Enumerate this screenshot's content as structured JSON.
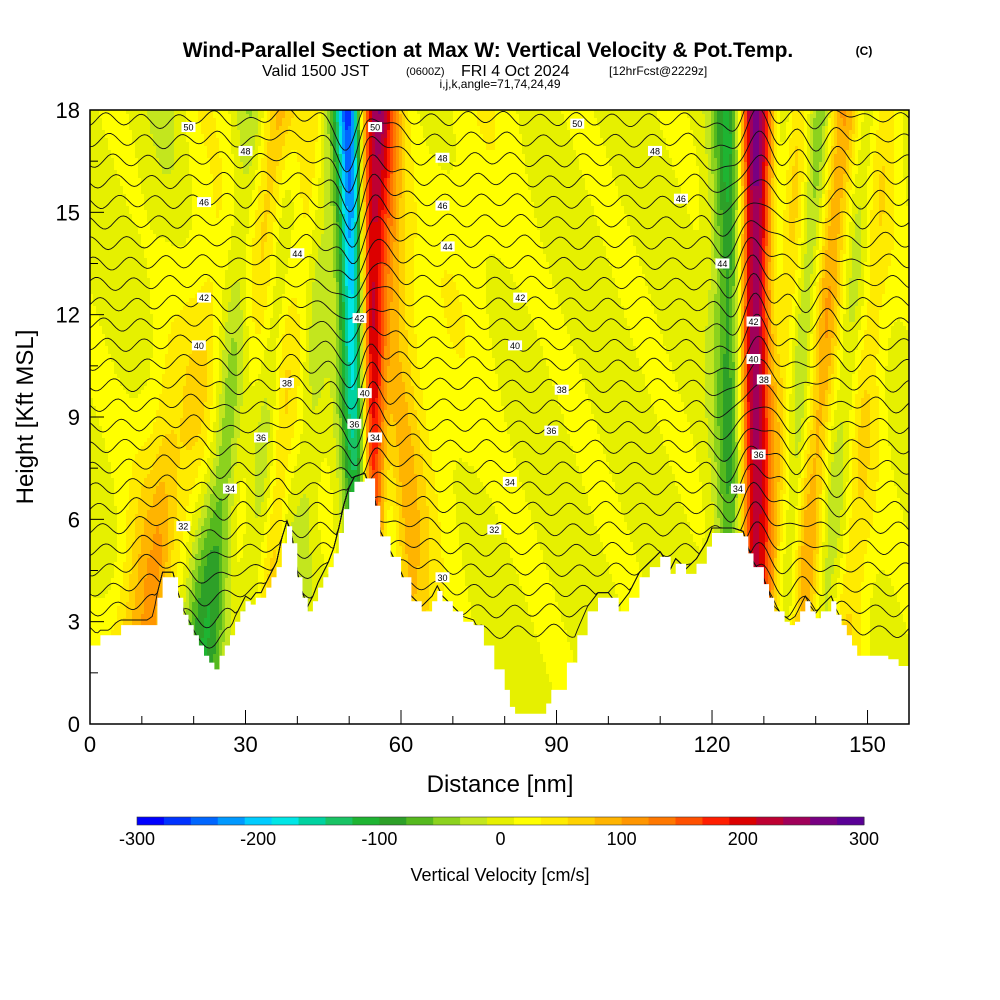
{
  "title": {
    "main": "Wind-Parallel Section at Max W: Vertical Velocity & Pot.Temp.",
    "mark": "(C)",
    "valid_a": "Valid 1500 JST",
    "valid_b": "(0600Z)",
    "valid_c": "FRI 4 Oct 2024",
    "valid_d": "[12hrFcst@2229z]",
    "indices": "i,j,k,angle=71,74,24,49"
  },
  "chart_data": {
    "type": "heatmap",
    "xlabel": "Distance [nm]",
    "ylabel": "Height [Kft MSL]",
    "xlim": [
      0,
      158
    ],
    "ylim": [
      0,
      18
    ],
    "x_ticks": [
      "0",
      "30",
      "60",
      "90",
      "120",
      "150"
    ],
    "y_ticks": [
      "0",
      "3",
      "6",
      "9",
      "12",
      "15",
      "18"
    ],
    "colorbar": {
      "label": "Vertical Velocity [cm/s]",
      "ticks": [
        "-300",
        "-200",
        "-100",
        "0",
        "100",
        "200",
        "300"
      ],
      "range": [
        -300,
        300
      ],
      "colors": [
        "#0000ff",
        "#0033ff",
        "#0066ff",
        "#0099ff",
        "#00ccff",
        "#00e6e6",
        "#00d2a0",
        "#19c364",
        "#1eb432",
        "#2da028",
        "#55b91e",
        "#8cd21e",
        "#c3e61e",
        "#e6f000",
        "#ffff00",
        "#ffeb00",
        "#ffd200",
        "#ffb400",
        "#ff9600",
        "#ff7800",
        "#ff5000",
        "#ff1e00",
        "#dc0000",
        "#be0032",
        "#a0005a",
        "#780082",
        "#5a0096"
      ]
    },
    "terrain_kft": [
      [
        0,
        2.3
      ],
      [
        2,
        2.6
      ],
      [
        5,
        2.6
      ],
      [
        6,
        2.9
      ],
      [
        12,
        2.9
      ],
      [
        13,
        3.7
      ],
      [
        14,
        4.3
      ],
      [
        16,
        4.3
      ],
      [
        17,
        3.7
      ],
      [
        18,
        3.2
      ],
      [
        19,
        2.9
      ],
      [
        20,
        2.6
      ],
      [
        21,
        2.3
      ],
      [
        22,
        2.0
      ],
      [
        23,
        1.8
      ],
      [
        24,
        1.6
      ],
      [
        25,
        2.0
      ],
      [
        26,
        2.3
      ],
      [
        27,
        2.6
      ],
      [
        28,
        3.0
      ],
      [
        29,
        3.3
      ],
      [
        30,
        3.6
      ],
      [
        31,
        3.5
      ],
      [
        32,
        3.7
      ],
      [
        33,
        3.7
      ],
      [
        34,
        4.0
      ],
      [
        35,
        4.3
      ],
      [
        36,
        4.6
      ],
      [
        37,
        5.3
      ],
      [
        38,
        5.8
      ],
      [
        39,
        5.3
      ],
      [
        40,
        4.3
      ],
      [
        41,
        3.7
      ],
      [
        42,
        3.3
      ],
      [
        43,
        3.6
      ],
      [
        44,
        4.0
      ],
      [
        45,
        4.3
      ],
      [
        46,
        4.6
      ],
      [
        47,
        5.0
      ],
      [
        48,
        5.6
      ],
      [
        49,
        6.3
      ],
      [
        50,
        6.8
      ],
      [
        51,
        7.1
      ],
      [
        53,
        7.2
      ],
      [
        55,
        6.4
      ],
      [
        56,
        5.5
      ],
      [
        58,
        4.9
      ],
      [
        60,
        4.3
      ],
      [
        62,
        3.6
      ],
      [
        64,
        3.3
      ],
      [
        66,
        3.6
      ],
      [
        67,
        3.9
      ],
      [
        68,
        3.6
      ],
      [
        70,
        3.3
      ],
      [
        72,
        3.0
      ],
      [
        74,
        2.9
      ],
      [
        76,
        2.3
      ],
      [
        78,
        1.6
      ],
      [
        80,
        1.0
      ],
      [
        81,
        0.5
      ],
      [
        82,
        0.3
      ],
      [
        86,
        0.3
      ],
      [
        88,
        0.6
      ],
      [
        89,
        1.0
      ],
      [
        92,
        1.8
      ],
      [
        94,
        2.6
      ],
      [
        96,
        3.3
      ],
      [
        98,
        3.7
      ],
      [
        100,
        3.7
      ],
      [
        102,
        3.3
      ],
      [
        104,
        3.7
      ],
      [
        106,
        4.3
      ],
      [
        108,
        4.6
      ],
      [
        110,
        4.9
      ],
      [
        112,
        4.4
      ],
      [
        113,
        4.7
      ],
      [
        115,
        4.4
      ],
      [
        117,
        4.7
      ],
      [
        119,
        5.2
      ],
      [
        120,
        5.6
      ],
      [
        122,
        5.6
      ],
      [
        124,
        5.6
      ],
      [
        126,
        5.5
      ],
      [
        127,
        5.0
      ],
      [
        128,
        4.6
      ],
      [
        130,
        4.1
      ],
      [
        131,
        3.7
      ],
      [
        132,
        3.3
      ],
      [
        134,
        3.0
      ],
      [
        135,
        2.9
      ],
      [
        136,
        3.0
      ],
      [
        137,
        3.3
      ],
      [
        138,
        3.6
      ],
      [
        139,
        3.3
      ],
      [
        140,
        3.1
      ],
      [
        141,
        3.3
      ],
      [
        143,
        3.6
      ],
      [
        144,
        3.2
      ],
      [
        145,
        2.9
      ],
      [
        146,
        2.6
      ],
      [
        147,
        2.3
      ],
      [
        148,
        2.0
      ],
      [
        150,
        2.0
      ],
      [
        153,
        2.0
      ],
      [
        154,
        1.9
      ],
      [
        156,
        1.7
      ],
      [
        158,
        1.7
      ]
    ],
    "updraft_bands": [
      {
        "x_top": 35,
        "x_bot": 12,
        "w": 7,
        "peak": 80
      },
      {
        "x_top": 37,
        "x_bot": 30,
        "w": 5,
        "peak": 60
      },
      {
        "x_top": 44,
        "x_bot": 37,
        "w": 5,
        "peak": 100
      },
      {
        "x_top": 55,
        "x_bot": 54,
        "w": 3.2,
        "peak": 300
      },
      {
        "x_top": 57,
        "x_bot": 62,
        "w": 4,
        "peak": 60
      },
      {
        "x_top": 76,
        "x_bot": 62,
        "w": 8,
        "peak": 20
      },
      {
        "x_top": 128,
        "x_bot": 128,
        "w": 3.5,
        "peak": 300
      },
      {
        "x_top": 136,
        "x_bot": 130,
        "w": 4,
        "peak": 120
      },
      {
        "x_top": 145,
        "x_bot": 137,
        "w": 4,
        "peak": 110
      },
      {
        "x_top": 152,
        "x_bot": 145,
        "w": 4,
        "peak": 70
      },
      {
        "x_top": 20,
        "x_bot": 10,
        "w": 5,
        "peak": 30
      }
    ],
    "downdraft_bands": [
      {
        "x_top": 32,
        "x_bot": 22,
        "w": 4,
        "peak": -110
      },
      {
        "x_top": 40,
        "x_bot": 31,
        "w": 3.5,
        "peak": -100
      },
      {
        "x_top": 46,
        "x_bot": 39,
        "w": 3.5,
        "peak": -100
      },
      {
        "x_top": 50,
        "x_bot": 52,
        "w": 2.6,
        "peak": -280
      },
      {
        "x_top": 55,
        "x_bot": 57,
        "w": 2.5,
        "peak": -100
      },
      {
        "x_top": 124,
        "x_bot": 125,
        "w": 3.5,
        "peak": -160
      },
      {
        "x_top": 134,
        "x_bot": 129,
        "w": 3,
        "peak": -120
      },
      {
        "x_top": 141,
        "x_bot": 134,
        "w": 3,
        "peak": -110
      },
      {
        "x_top": 150,
        "x_bot": 142,
        "w": 3,
        "peak": -90
      },
      {
        "x_top": 16,
        "x_bot": 18,
        "w": 5,
        "peak": -30
      }
    ],
    "isentropes_levels_kft": [
      2.7,
      3.3,
      3.9,
      4.5,
      5.1,
      5.7,
      6.3,
      6.9,
      7.5,
      8.1,
      8.7,
      9.3,
      9.9,
      10.5,
      11.1,
      11.7,
      12.3,
      12.9,
      13.5,
      14.1,
      14.7,
      15.3,
      15.9,
      16.5,
      17.1,
      17.7
    ],
    "contour_labels": [
      {
        "text": "50",
        "x": 19,
        "y": 17.5
      },
      {
        "text": "48",
        "x": 30,
        "y": 16.8
      },
      {
        "text": "46",
        "x": 22,
        "y": 15.3
      },
      {
        "text": "44",
        "x": 40,
        "y": 13.8
      },
      {
        "text": "42",
        "x": 22,
        "y": 12.5
      },
      {
        "text": "40",
        "x": 21,
        "y": 11.1
      },
      {
        "text": "38",
        "x": 38,
        "y": 10.0
      },
      {
        "text": "36",
        "x": 33,
        "y": 8.4
      },
      {
        "text": "34",
        "x": 27,
        "y": 6.9
      },
      {
        "text": "32",
        "x": 18,
        "y": 5.8
      },
      {
        "text": "50",
        "x": 55,
        "y": 17.5
      },
      {
        "text": "48",
        "x": 68,
        "y": 16.6
      },
      {
        "text": "46",
        "x": 68,
        "y": 15.2
      },
      {
        "text": "44",
        "x": 69,
        "y": 14.0
      },
      {
        "text": "42",
        "x": 52,
        "y": 11.9
      },
      {
        "text": "40",
        "x": 53,
        "y": 9.7
      },
      {
        "text": "36",
        "x": 51,
        "y": 8.8
      },
      {
        "text": "34",
        "x": 55,
        "y": 8.4
      },
      {
        "text": "50",
        "x": 94,
        "y": 17.6
      },
      {
        "text": "48",
        "x": 109,
        "y": 16.8
      },
      {
        "text": "46",
        "x": 114,
        "y": 15.4
      },
      {
        "text": "42",
        "x": 83,
        "y": 12.5
      },
      {
        "text": "40",
        "x": 82,
        "y": 11.1
      },
      {
        "text": "38",
        "x": 91,
        "y": 9.8
      },
      {
        "text": "36",
        "x": 89,
        "y": 8.6
      },
      {
        "text": "34",
        "x": 81,
        "y": 7.1
      },
      {
        "text": "32",
        "x": 78,
        "y": 5.7
      },
      {
        "text": "30",
        "x": 68,
        "y": 4.3
      },
      {
        "text": "44",
        "x": 122,
        "y": 13.5
      },
      {
        "text": "42",
        "x": 128,
        "y": 11.8
      },
      {
        "text": "40",
        "x": 128,
        "y": 10.7
      },
      {
        "text": "38",
        "x": 130,
        "y": 10.1
      },
      {
        "text": "36",
        "x": 129,
        "y": 7.9
      },
      {
        "text": "34",
        "x": 125,
        "y": 6.9
      }
    ]
  }
}
